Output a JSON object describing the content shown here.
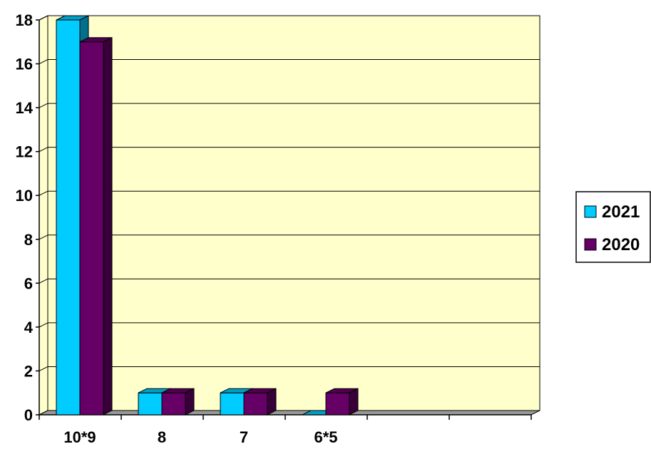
{
  "chart_data": {
    "type": "bar",
    "title": "",
    "xlabel": "",
    "ylabel": "",
    "categories": [
      "10*9",
      "8",
      "7",
      "6*5",
      "",
      ""
    ],
    "series": [
      {
        "name": "2021",
        "values": [
          18,
          1,
          1,
          0,
          null,
          null
        ]
      },
      {
        "name": "2020",
        "values": [
          17,
          1,
          1,
          1,
          null,
          null
        ]
      }
    ],
    "ylim": [
      0,
      18
    ],
    "yticks": [
      0,
      2,
      4,
      6,
      8,
      10,
      12,
      14,
      16,
      18
    ],
    "grid": true,
    "legend": "right",
    "colors": {
      "2021": "#00CCFF",
      "2020": "#660066",
      "plot_background": "#FFFFCC",
      "floor": "#999999"
    }
  }
}
